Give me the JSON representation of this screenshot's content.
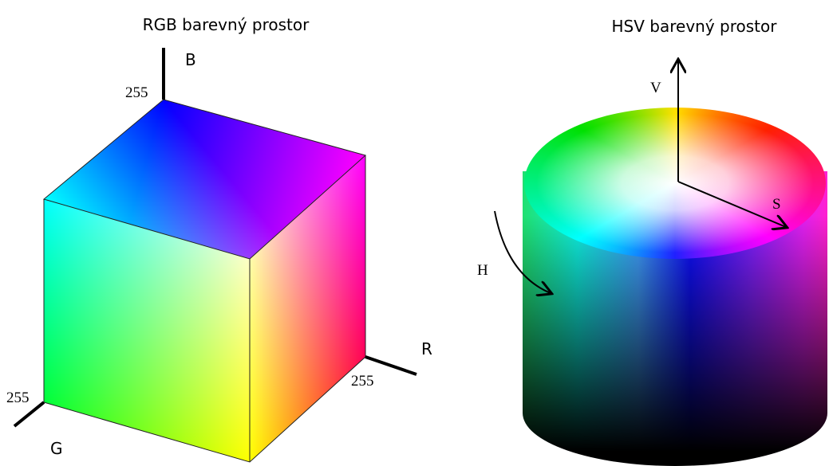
{
  "rgb": {
    "title": "RGB barevný prostor",
    "axes": {
      "b": "B",
      "r": "R",
      "g": "G"
    },
    "max_b": 255,
    "max_r": 255,
    "max_g": 255
  },
  "hsv": {
    "title": "HSV barevný prostor",
    "axes": {
      "v": "V",
      "s": "S",
      "h": "H"
    }
  }
}
